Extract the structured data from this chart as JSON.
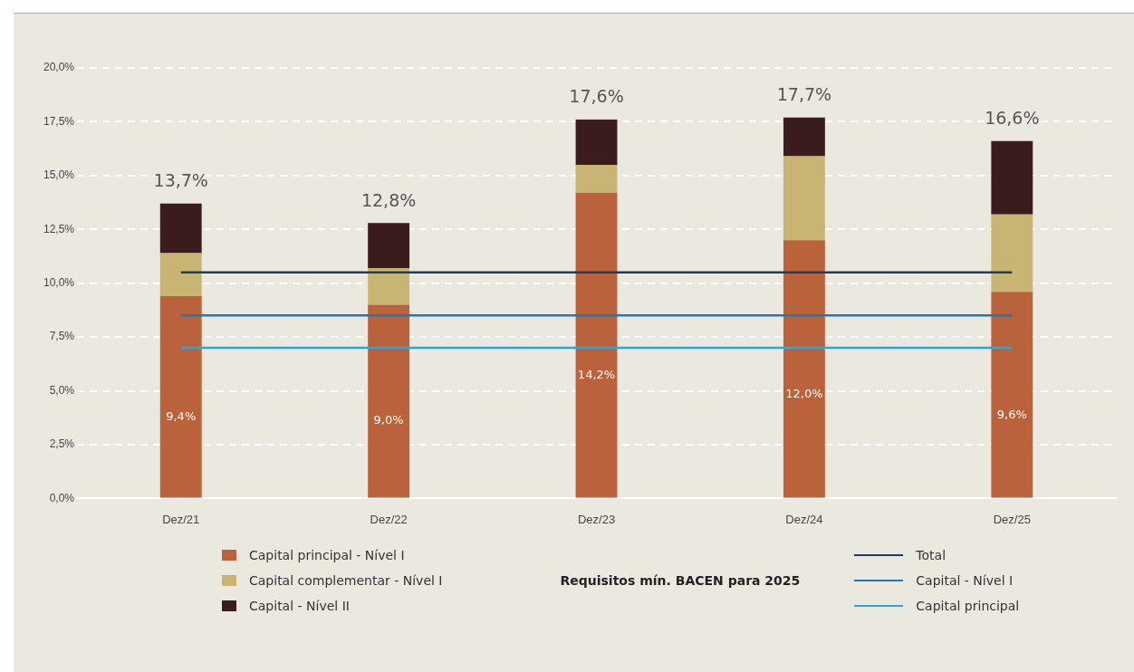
{
  "chart_data": {
    "type": "bar",
    "stacked": true,
    "categories": [
      "Dez/21",
      "Dez/22",
      "Dez/23",
      "Dez/24",
      "Dez/25"
    ],
    "series": [
      {
        "name": "Capital principal - Nível I",
        "color": "#b9623b",
        "values": [
          9.4,
          9.0,
          14.2,
          12.0,
          9.6
        ],
        "value_labels": [
          "9,4%",
          "9,0%",
          "14,2%",
          "12,0%",
          "9,6%"
        ]
      },
      {
        "name": "Capital complementar - Nível I",
        "color": "#c9b573",
        "values": [
          2.0,
          1.7,
          1.3,
          3.9,
          3.6
        ]
      },
      {
        "name": "Capital - Nível II",
        "color": "#3a1c1d",
        "values": [
          2.3,
          2.1,
          2.1,
          1.8,
          3.4
        ]
      },
      {
        "name": "Total",
        "type": "line",
        "color": "#1b3e62",
        "values": [
          10.5,
          10.5,
          10.5,
          10.5,
          10.5
        ]
      },
      {
        "name": "Capital - Nível I",
        "type": "line",
        "color": "#1f77b4",
        "values": [
          8.5,
          8.5,
          8.5,
          8.5,
          8.5
        ]
      },
      {
        "name": "Capital principal",
        "type": "line",
        "color": "#2aa7df",
        "values": [
          7.0,
          7.0,
          7.0,
          7.0,
          7.0
        ]
      }
    ],
    "totals": [
      "13,7%",
      "12,8%",
      "17,6%",
      "17,7%",
      "16,6%"
    ],
    "legend_title": "Requisitos mín. BACEN para 2025",
    "legend": "bottom",
    "grid": "y",
    "marker": "none",
    "line_style": "solid",
    "ylim": [
      0,
      20
    ],
    "yticks": [
      {
        "value": 0,
        "label": "0,0%"
      },
      {
        "value": 2.5,
        "label": "2,5%"
      },
      {
        "value": 5,
        "label": "5,0%"
      },
      {
        "value": 7.5,
        "label": "7,5%"
      },
      {
        "value": 10,
        "label": "10,0%"
      },
      {
        "value": 12.5,
        "label": "12,5%"
      },
      {
        "value": 15,
        "label": "15,0%"
      },
      {
        "value": 17.5,
        "label": "17,5%"
      },
      {
        "value": 20,
        "label": "20,0%"
      }
    ]
  }
}
